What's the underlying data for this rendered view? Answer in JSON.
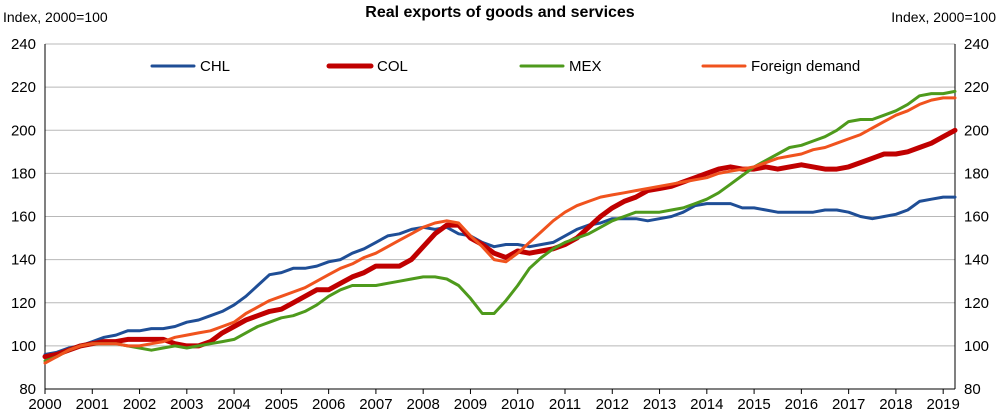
{
  "chart_data": {
    "type": "line",
    "title": "Real exports of goods and services",
    "ylabel_left": "Index, 2000=100",
    "ylabel_right": "Index, 2000=100",
    "ylim": [
      80,
      240
    ],
    "yticks": [
      80,
      100,
      120,
      140,
      160,
      180,
      200,
      220,
      240
    ],
    "xlim": [
      2000,
      2019.25
    ],
    "xticks": [
      "2000",
      "2001",
      "2002",
      "2003",
      "2004",
      "2005",
      "2006",
      "2007",
      "2008",
      "2009",
      "2010",
      "2011",
      "2012",
      "2013",
      "2014",
      "2015",
      "2016",
      "2017",
      "2018",
      "2019"
    ],
    "legend_position": "top",
    "grid": true,
    "series": [
      {
        "name": "CHL",
        "color": "#1f4e96",
        "width": 3,
        "x": [
          2000,
          2000.25,
          2000.5,
          2000.75,
          2001,
          2001.25,
          2001.5,
          2001.75,
          2002,
          2002.25,
          2002.5,
          2002.75,
          2003,
          2003.25,
          2003.5,
          2003.75,
          2004,
          2004.25,
          2004.5,
          2004.75,
          2005,
          2005.25,
          2005.5,
          2005.75,
          2006,
          2006.25,
          2006.5,
          2006.75,
          2007,
          2007.25,
          2007.5,
          2007.75,
          2008,
          2008.25,
          2008.5,
          2008.75,
          2009,
          2009.25,
          2009.5,
          2009.75,
          2010,
          2010.25,
          2010.5,
          2010.75,
          2011,
          2011.25,
          2011.5,
          2011.75,
          2012,
          2012.25,
          2012.5,
          2012.75,
          2013,
          2013.25,
          2013.5,
          2013.75,
          2014,
          2014.25,
          2014.5,
          2014.75,
          2015,
          2015.25,
          2015.5,
          2015.75,
          2016,
          2016.25,
          2016.5,
          2016.75,
          2017,
          2017.25,
          2017.5,
          2017.75,
          2018,
          2018.25,
          2018.5,
          2018.75,
          2019,
          2019.25
        ],
        "y": [
          96,
          97,
          99,
          100,
          102,
          104,
          105,
          107,
          107,
          108,
          108,
          109,
          111,
          112,
          114,
          116,
          119,
          123,
          128,
          133,
          134,
          136,
          136,
          137,
          139,
          140,
          143,
          145,
          148,
          151,
          152,
          154,
          155,
          154,
          155,
          152,
          151,
          148,
          146,
          147,
          147,
          146,
          147,
          148,
          151,
          154,
          156,
          157,
          159,
          159,
          159,
          158,
          159,
          160,
          162,
          165,
          166,
          166,
          166,
          164,
          164,
          163,
          162,
          162,
          162,
          162,
          163,
          163,
          162,
          160,
          159,
          160,
          161,
          163,
          167,
          168,
          169,
          169
        ]
      },
      {
        "name": "COL",
        "color": "#c00000",
        "width": 5,
        "x": [
          2000,
          2000.25,
          2000.5,
          2000.75,
          2001,
          2001.25,
          2001.5,
          2001.75,
          2002,
          2002.25,
          2002.5,
          2002.75,
          2003,
          2003.25,
          2003.5,
          2003.75,
          2004,
          2004.25,
          2004.5,
          2004.75,
          2005,
          2005.25,
          2005.5,
          2005.75,
          2006,
          2006.25,
          2006.5,
          2006.75,
          2007,
          2007.25,
          2007.5,
          2007.75,
          2008,
          2008.25,
          2008.5,
          2008.75,
          2009,
          2009.25,
          2009.5,
          2009.75,
          2010,
          2010.25,
          2010.5,
          2010.75,
          2011,
          2011.25,
          2011.5,
          2011.75,
          2012,
          2012.25,
          2012.5,
          2012.75,
          2013,
          2013.25,
          2013.5,
          2013.75,
          2014,
          2014.25,
          2014.5,
          2014.75,
          2015,
          2015.25,
          2015.5,
          2015.75,
          2016,
          2016.25,
          2016.5,
          2016.75,
          2017,
          2017.25,
          2017.5,
          2017.75,
          2018,
          2018.25,
          2018.5,
          2018.75,
          2019,
          2019.25
        ],
        "y": [
          95,
          96,
          98,
          100,
          101,
          102,
          102,
          103,
          103,
          103,
          103,
          101,
          100,
          100,
          102,
          106,
          109,
          112,
          114,
          116,
          117,
          120,
          123,
          126,
          126,
          129,
          132,
          134,
          137,
          137,
          137,
          140,
          146,
          152,
          156,
          156,
          150,
          147,
          143,
          141,
          144,
          143,
          144,
          145,
          147,
          150,
          155,
          160,
          164,
          167,
          169,
          172,
          173,
          174,
          176,
          178,
          180,
          182,
          183,
          182,
          182,
          183,
          182,
          183,
          184,
          183,
          182,
          182,
          183,
          185,
          187,
          189,
          189,
          190,
          192,
          194,
          197,
          200
        ]
      },
      {
        "name": "MEX",
        "color": "#4e9a1c",
        "width": 3,
        "x": [
          2000,
          2000.25,
          2000.5,
          2000.75,
          2001,
          2001.25,
          2001.5,
          2001.75,
          2002,
          2002.25,
          2002.5,
          2002.75,
          2003,
          2003.25,
          2003.5,
          2003.75,
          2004,
          2004.25,
          2004.5,
          2004.75,
          2005,
          2005.25,
          2005.5,
          2005.75,
          2006,
          2006.25,
          2006.5,
          2006.75,
          2007,
          2007.25,
          2007.5,
          2007.75,
          2008,
          2008.25,
          2008.5,
          2008.75,
          2009,
          2009.25,
          2009.5,
          2009.75,
          2010,
          2010.25,
          2010.5,
          2010.75,
          2011,
          2011.25,
          2011.5,
          2011.75,
          2012,
          2012.25,
          2012.5,
          2012.75,
          2013,
          2013.25,
          2013.5,
          2013.75,
          2014,
          2014.25,
          2014.5,
          2014.75,
          2015,
          2015.25,
          2015.5,
          2015.75,
          2016,
          2016.25,
          2016.5,
          2016.75,
          2017,
          2017.25,
          2017.5,
          2017.75,
          2018,
          2018.25,
          2018.5,
          2018.75,
          2019,
          2019.25
        ],
        "y": [
          93,
          95,
          98,
          100,
          101,
          101,
          101,
          100,
          99,
          98,
          99,
          100,
          99,
          100,
          101,
          102,
          103,
          106,
          109,
          111,
          113,
          114,
          116,
          119,
          123,
          126,
          128,
          128,
          128,
          129,
          130,
          131,
          132,
          132,
          131,
          128,
          122,
          115,
          115,
          121,
          128,
          136,
          141,
          145,
          148,
          150,
          152,
          155,
          158,
          160,
          162,
          162,
          162,
          163,
          164,
          166,
          168,
          171,
          175,
          179,
          183,
          186,
          189,
          192,
          193,
          195,
          197,
          200,
          204,
          205,
          205,
          207,
          209,
          212,
          216,
          217,
          217,
          218
        ]
      },
      {
        "name": "Foreign demand",
        "color": "#f0531e",
        "width": 3,
        "x": [
          2000,
          2000.25,
          2000.5,
          2000.75,
          2001,
          2001.25,
          2001.5,
          2001.75,
          2002,
          2002.25,
          2002.5,
          2002.75,
          2003,
          2003.25,
          2003.5,
          2003.75,
          2004,
          2004.25,
          2004.5,
          2004.75,
          2005,
          2005.25,
          2005.5,
          2005.75,
          2006,
          2006.25,
          2006.5,
          2006.75,
          2007,
          2007.25,
          2007.5,
          2007.75,
          2008,
          2008.25,
          2008.5,
          2008.75,
          2009,
          2009.25,
          2009.5,
          2009.75,
          2010,
          2010.25,
          2010.5,
          2010.75,
          2011,
          2011.25,
          2011.5,
          2011.75,
          2012,
          2012.25,
          2012.5,
          2012.75,
          2013,
          2013.25,
          2013.5,
          2013.75,
          2014,
          2014.25,
          2014.5,
          2014.75,
          2015,
          2015.25,
          2015.5,
          2015.75,
          2016,
          2016.25,
          2016.5,
          2016.75,
          2017,
          2017.25,
          2017.5,
          2017.75,
          2018,
          2018.25,
          2018.5,
          2018.75,
          2019,
          2019.25
        ],
        "y": [
          92,
          95,
          98,
          100,
          101,
          101,
          101,
          100,
          100,
          101,
          102,
          104,
          105,
          106,
          107,
          109,
          111,
          115,
          118,
          121,
          123,
          125,
          127,
          130,
          133,
          136,
          138,
          141,
          143,
          146,
          149,
          152,
          155,
          157,
          158,
          157,
          151,
          146,
          140,
          139,
          143,
          148,
          153,
          158,
          162,
          165,
          167,
          169,
          170,
          171,
          172,
          173,
          174,
          175,
          176,
          177,
          178,
          180,
          181,
          182,
          183,
          185,
          187,
          188,
          189,
          191,
          192,
          194,
          196,
          198,
          201,
          204,
          207,
          209,
          212,
          214,
          215,
          215
        ]
      }
    ]
  }
}
